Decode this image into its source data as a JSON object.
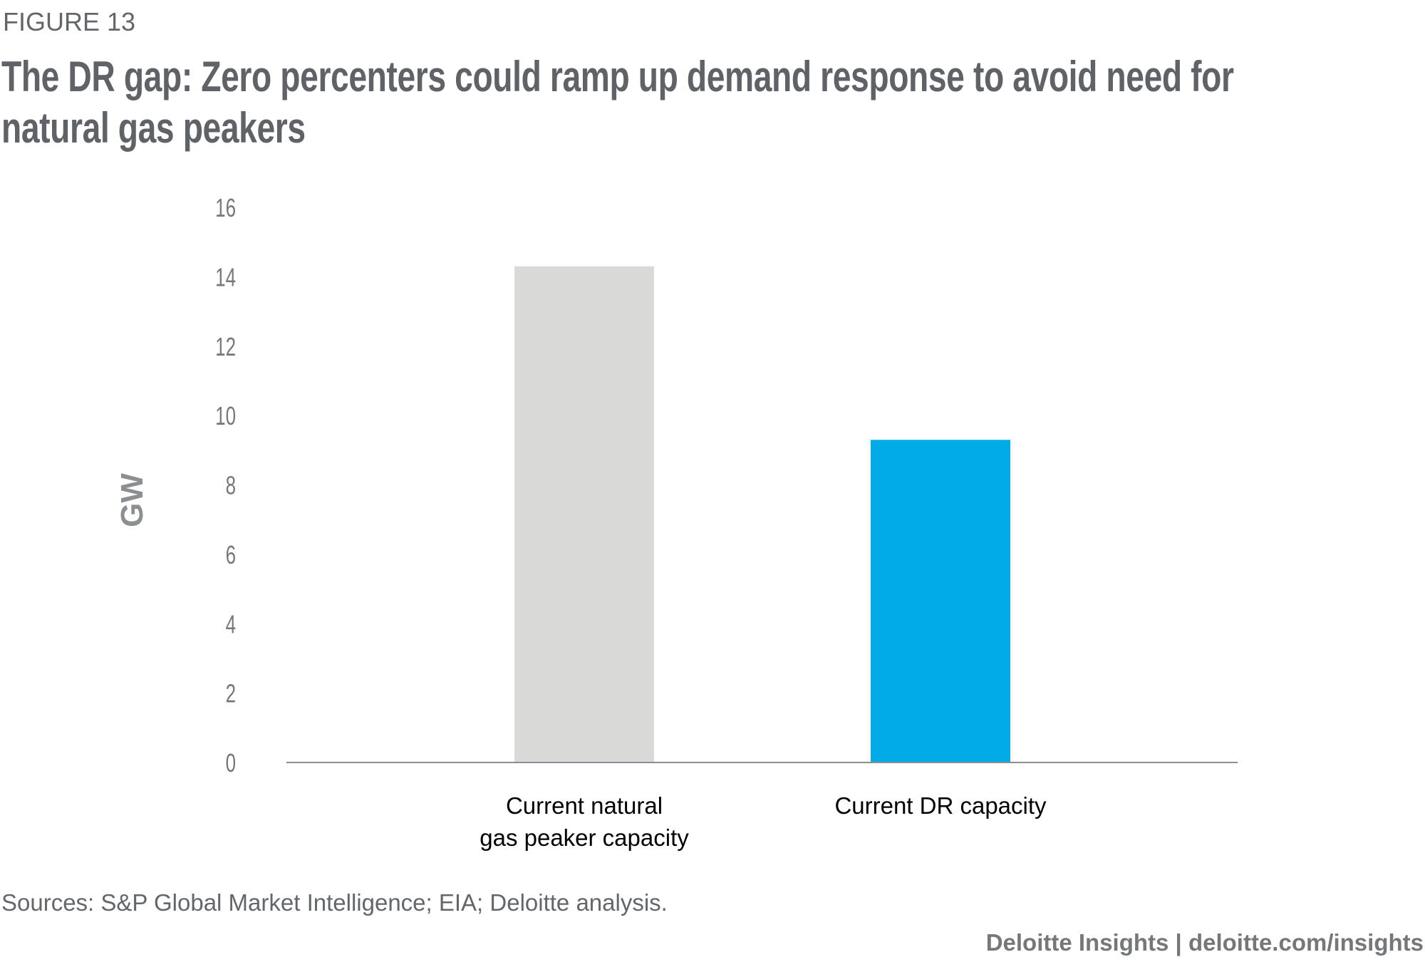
{
  "figure_label": "FIGURE 13",
  "title": "The DR gap: Zero percenters could ramp up demand response to avoid need for natural gas peakers",
  "sources": "Sources: S&P Global Market Intelligence; EIA; Deloitte analysis.",
  "footer": "Deloitte Insights | deloitte.com/insights",
  "chart_data": {
    "type": "bar",
    "categories": [
      [
        "Current natural",
        "gas peaker capacity"
      ],
      [
        "Current DR capacity"
      ]
    ],
    "values": [
      14.3,
      9.3
    ],
    "colors": [
      "#d9dad8",
      "#00abe6"
    ],
    "ylabel": "GW",
    "xlabel": "",
    "ylim": [
      0,
      16
    ],
    "yticks": [
      "0",
      "2",
      "4",
      "6",
      "8",
      "10",
      "12",
      "14",
      "16"
    ],
    "grid": false
  }
}
